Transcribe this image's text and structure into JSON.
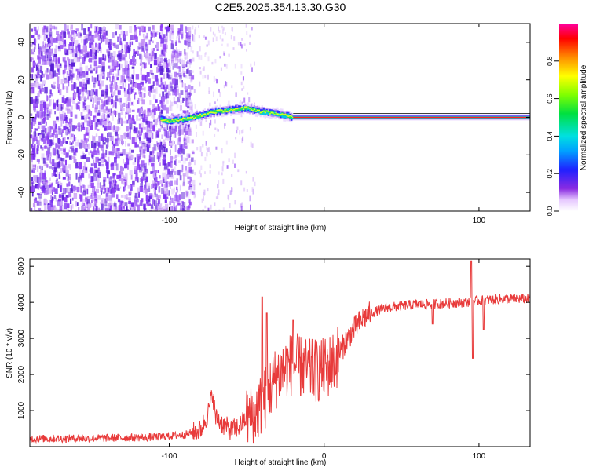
{
  "chart_data": [
    {
      "type": "heatmap",
      "title": "C2E5.2025.354.13.30.G30",
      "xlabel": "Height of straight line (km)",
      "ylabel": "Frequency (Hz)",
      "xlim": [
        -190,
        133
      ],
      "ylim": [
        -50,
        50
      ],
      "xticks": [
        -100,
        0,
        100
      ],
      "xtick_labels": [
        "-100",
        "",
        "100"
      ],
      "yticks": [
        -40,
        -20,
        0,
        20,
        40
      ],
      "ytick_labels": [
        "-40",
        "-20",
        "0",
        "20",
        "40"
      ],
      "noise_region_x": [
        -190,
        -85
      ],
      "sparse_region_x": [
        -85,
        -45
      ],
      "signal_track": {
        "x": [
          -105,
          -100,
          -90,
          -80,
          -70,
          -60,
          -50,
          -40,
          -30,
          -20,
          -10,
          0,
          50,
          100,
          133
        ],
        "y": [
          -1,
          -2,
          -1,
          1,
          3,
          4,
          5,
          3,
          2,
          0,
          0,
          0,
          0,
          0,
          0
        ]
      },
      "colorbar": {
        "label": "Normalized spectral amplitude",
        "ticks": [
          0.0,
          0.2,
          0.4,
          0.6,
          0.8
        ],
        "tick_labels": [
          "0.0",
          "0.2",
          "0.4",
          "0.6",
          "0.8"
        ],
        "range": [
          0,
          1
        ]
      }
    },
    {
      "type": "line",
      "xlabel": "Height of straight line (km)",
      "ylabel": "SNR (10 * v/v)",
      "xlim": [
        -190,
        133
      ],
      "ylim": [
        0,
        5200
      ],
      "xticks": [
        -100,
        0,
        100
      ],
      "xtick_labels": [
        "-100",
        "0",
        "100"
      ],
      "yticks": [
        1000,
        2000,
        3000,
        4000,
        5000
      ],
      "ytick_labels": [
        "1000",
        "2000",
        "3000",
        "4000",
        "5000"
      ],
      "series": [
        {
          "name": "SNR",
          "color": "#e83a3a",
          "x": [
            -190,
            -150,
            -110,
            -90,
            -80,
            -75,
            -72,
            -70,
            -65,
            -60,
            -55,
            -50,
            -45,
            -40,
            -35,
            -30,
            -25,
            -20,
            -15,
            -10,
            -5,
            0,
            5,
            10,
            15,
            20,
            25,
            30,
            40,
            50,
            60,
            70,
            80,
            90,
            95,
            100,
            110,
            120,
            133
          ],
          "y": [
            220,
            230,
            260,
            330,
            450,
            900,
            1500,
            800,
            600,
            450,
            550,
            800,
            900,
            1200,
            1600,
            2000,
            2200,
            2300,
            2200,
            2100,
            2100,
            2150,
            2300,
            2600,
            3000,
            3300,
            3550,
            3700,
            3850,
            3900,
            3950,
            3950,
            3980,
            4000,
            4020,
            4050,
            4080,
            4100,
            4100
          ]
        }
      ],
      "spikes": [
        {
          "x": -40,
          "y": 4150
        },
        {
          "x": -37,
          "y": 3700
        },
        {
          "x": -20,
          "y": 3500
        },
        {
          "x": 70,
          "y": 3400
        },
        {
          "x": 95,
          "y": 5150
        },
        {
          "x": 96,
          "y": 2450
        },
        {
          "x": 103,
          "y": 3250
        }
      ]
    }
  ]
}
